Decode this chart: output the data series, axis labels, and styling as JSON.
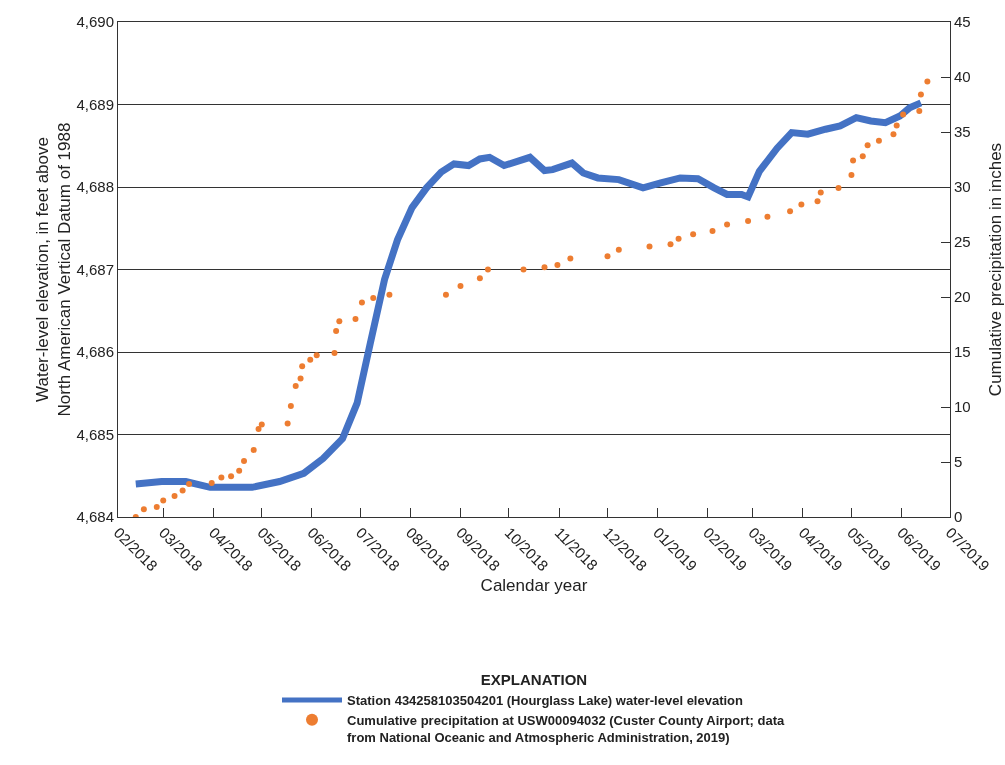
{
  "chart_data": {
    "type": "line",
    "xlabel": "Calendar year",
    "ylabel": "Water-level elevation, in feet above North American Vertical Datum of 1988",
    "y2label": "Cumulative precipitation in inches",
    "legend_title": "EXPLANATION",
    "legend": "bottom",
    "grid": "y",
    "line_style": "solid",
    "xlim": [
      "2018-02-01",
      "2019-07-01"
    ],
    "xticks": [
      {
        "value": "2018-02-01",
        "label": "02/2018"
      },
      {
        "value": "2018-03-01",
        "label": "03/2018"
      },
      {
        "value": "2018-04-01",
        "label": "04/2018"
      },
      {
        "value": "2018-05-01",
        "label": "05/2018"
      },
      {
        "value": "2018-06-01",
        "label": "06/2018"
      },
      {
        "value": "2018-07-01",
        "label": "07/2018"
      },
      {
        "value": "2018-08-01",
        "label": "08/2018"
      },
      {
        "value": "2018-09-01",
        "label": "09/2018"
      },
      {
        "value": "2018-10-01",
        "label": "10/2018"
      },
      {
        "value": "2018-11-01",
        "label": "11/2018"
      },
      {
        "value": "2018-12-01",
        "label": "12/2018"
      },
      {
        "value": "2019-01-01",
        "label": "01/2019"
      },
      {
        "value": "2019-02-01",
        "label": "02/2019"
      },
      {
        "value": "2019-03-01",
        "label": "03/2019"
      },
      {
        "value": "2019-04-01",
        "label": "04/2019"
      },
      {
        "value": "2019-05-01",
        "label": "05/2019"
      },
      {
        "value": "2019-06-01",
        "label": "06/2019"
      },
      {
        "value": "2019-07-01",
        "label": "07/2019"
      }
    ],
    "ylim": [
      4684,
      4690
    ],
    "yticks": [
      {
        "value": 4684,
        "label": "4,684"
      },
      {
        "value": 4685,
        "label": "4,685"
      },
      {
        "value": 4686,
        "label": "4,686"
      },
      {
        "value": 4687,
        "label": "4,687"
      },
      {
        "value": 4688,
        "label": "4,688"
      },
      {
        "value": 4689,
        "label": "4,689"
      },
      {
        "value": 4690,
        "label": "4,690"
      }
    ],
    "y2lim": [
      0,
      45
    ],
    "y2ticks": [
      0,
      5,
      10,
      15,
      20,
      25,
      30,
      35,
      40,
      45
    ],
    "series": [
      {
        "name": "Station 434258103504201 (Hourglass Lake) water-level elevation",
        "marker": "none",
        "color": "#4472c4",
        "x": [
          "2018-02-12",
          "2018-02-28",
          "2018-03-15",
          "2018-03-30",
          "2018-04-25",
          "2018-05-12",
          "2018-05-27",
          "2018-06-08",
          "2018-06-20",
          "2018-06-29",
          "2018-07-07",
          "2018-07-16",
          "2018-07-24",
          "2018-08-02",
          "2018-08-11",
          "2018-08-20",
          "2018-08-28",
          "2018-09-06",
          "2018-09-13",
          "2018-09-19",
          "2018-09-28",
          "2018-10-14",
          "2018-10-23",
          "2018-10-28",
          "2018-11-09",
          "2018-11-16",
          "2018-11-25",
          "2018-12-08",
          "2018-12-23",
          "2019-01-03",
          "2019-01-15",
          "2019-01-26",
          "2019-02-05",
          "2019-02-13",
          "2019-02-22",
          "2019-02-26",
          "2019-03-05",
          "2019-03-16",
          "2019-03-25",
          "2019-04-04",
          "2019-04-15",
          "2019-04-24",
          "2019-05-04",
          "2019-05-13",
          "2019-05-22",
          "2019-05-31",
          "2019-06-06",
          "2019-06-13"
        ],
        "values": [
          4684.4,
          4684.43,
          4684.43,
          4684.36,
          4684.36,
          4684.43,
          4684.53,
          4684.71,
          4684.95,
          4685.38,
          4686.09,
          4686.88,
          4687.36,
          4687.75,
          4687.99,
          4688.18,
          4688.28,
          4688.26,
          4688.34,
          4688.36,
          4688.26,
          4688.36,
          4688.2,
          4688.21,
          4688.29,
          4688.17,
          4688.11,
          4688.09,
          4687.99,
          4688.05,
          4688.11,
          4688.1,
          4687.99,
          4687.91,
          4687.91,
          4687.88,
          4688.19,
          4688.47,
          4688.66,
          4688.64,
          4688.7,
          4688.74,
          4688.84,
          4688.8,
          4688.78,
          4688.86,
          4688.96,
          4689.02
        ]
      },
      {
        "name": "Cumulative precipitation at USW00094032 (Custer County Airport; data from National Oceanic and Atmospheric Administration, 2019)",
        "type": "scatter",
        "marker": "circle",
        "axis": "y2",
        "color": "#ed7d31",
        "x": [
          "2018-02-12",
          "2018-02-17",
          "2018-02-25",
          "2018-03-01",
          "2018-03-08",
          "2018-03-13",
          "2018-03-17",
          "2018-03-31",
          "2018-04-06",
          "2018-04-12",
          "2018-04-17",
          "2018-04-20",
          "2018-04-26",
          "2018-04-29",
          "2018-05-01",
          "2018-05-17",
          "2018-05-19",
          "2018-05-22",
          "2018-05-25",
          "2018-05-26",
          "2018-05-31",
          "2018-06-04",
          "2018-06-15",
          "2018-06-16",
          "2018-06-18",
          "2018-06-28",
          "2018-07-02",
          "2018-07-09",
          "2018-07-19",
          "2018-08-23",
          "2018-09-01",
          "2018-09-13",
          "2018-09-18",
          "2018-10-10",
          "2018-10-23",
          "2018-10-31",
          "2018-11-08",
          "2018-12-01",
          "2018-12-08",
          "2018-12-27",
          "2019-01-09",
          "2019-01-14",
          "2019-01-23",
          "2019-02-04",
          "2019-02-13",
          "2019-02-26",
          "2019-03-10",
          "2019-03-24",
          "2019-03-31",
          "2019-04-10",
          "2019-04-12",
          "2019-04-23",
          "2019-05-01",
          "2019-05-02",
          "2019-05-08",
          "2019-05-11",
          "2019-05-18",
          "2019-05-27",
          "2019-05-29",
          "2019-06-02",
          "2019-06-12",
          "2019-06-13",
          "2019-06-17"
        ],
        "values": [
          0,
          0.7,
          0.9,
          1.5,
          1.9,
          2.4,
          3.0,
          3.1,
          3.6,
          3.7,
          4.2,
          5.1,
          6.1,
          8.0,
          8.4,
          8.5,
          10.1,
          11.9,
          12.6,
          13.7,
          14.3,
          14.7,
          14.9,
          16.9,
          17.8,
          18.0,
          19.5,
          19.9,
          20.2,
          20.2,
          21.0,
          21.7,
          22.5,
          22.5,
          22.7,
          22.9,
          23.5,
          23.7,
          24.3,
          24.6,
          24.8,
          25.3,
          25.7,
          26.0,
          26.6,
          26.9,
          27.3,
          27.8,
          28.4,
          28.7,
          29.5,
          29.9,
          31.1,
          32.4,
          32.8,
          33.8,
          34.2,
          34.8,
          35.6,
          36.6,
          36.9,
          38.4,
          39.6
        ]
      }
    ]
  }
}
